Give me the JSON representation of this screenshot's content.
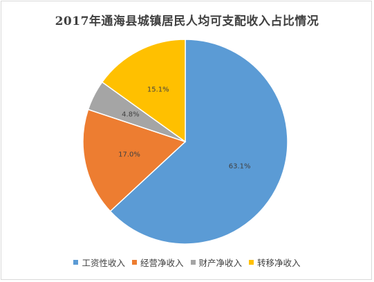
{
  "chart_data": {
    "type": "pie",
    "title": "2017年通海县城镇居民人均可支配收入占比情况",
    "categories": [
      "工资性收入",
      "经营净收入",
      "财产净收入",
      "转移净收入"
    ],
    "values": [
      63.1,
      17.0,
      4.8,
      15.1
    ],
    "labels": [
      "63.1%",
      "17.0%",
      "4.8%",
      "15.1%"
    ],
    "colors": [
      "#5b9bd5",
      "#ed7d31",
      "#a5a5a5",
      "#ffc000"
    ],
    "start_angle_deg": 0,
    "direction": "clockwise",
    "legend_position": "bottom"
  }
}
